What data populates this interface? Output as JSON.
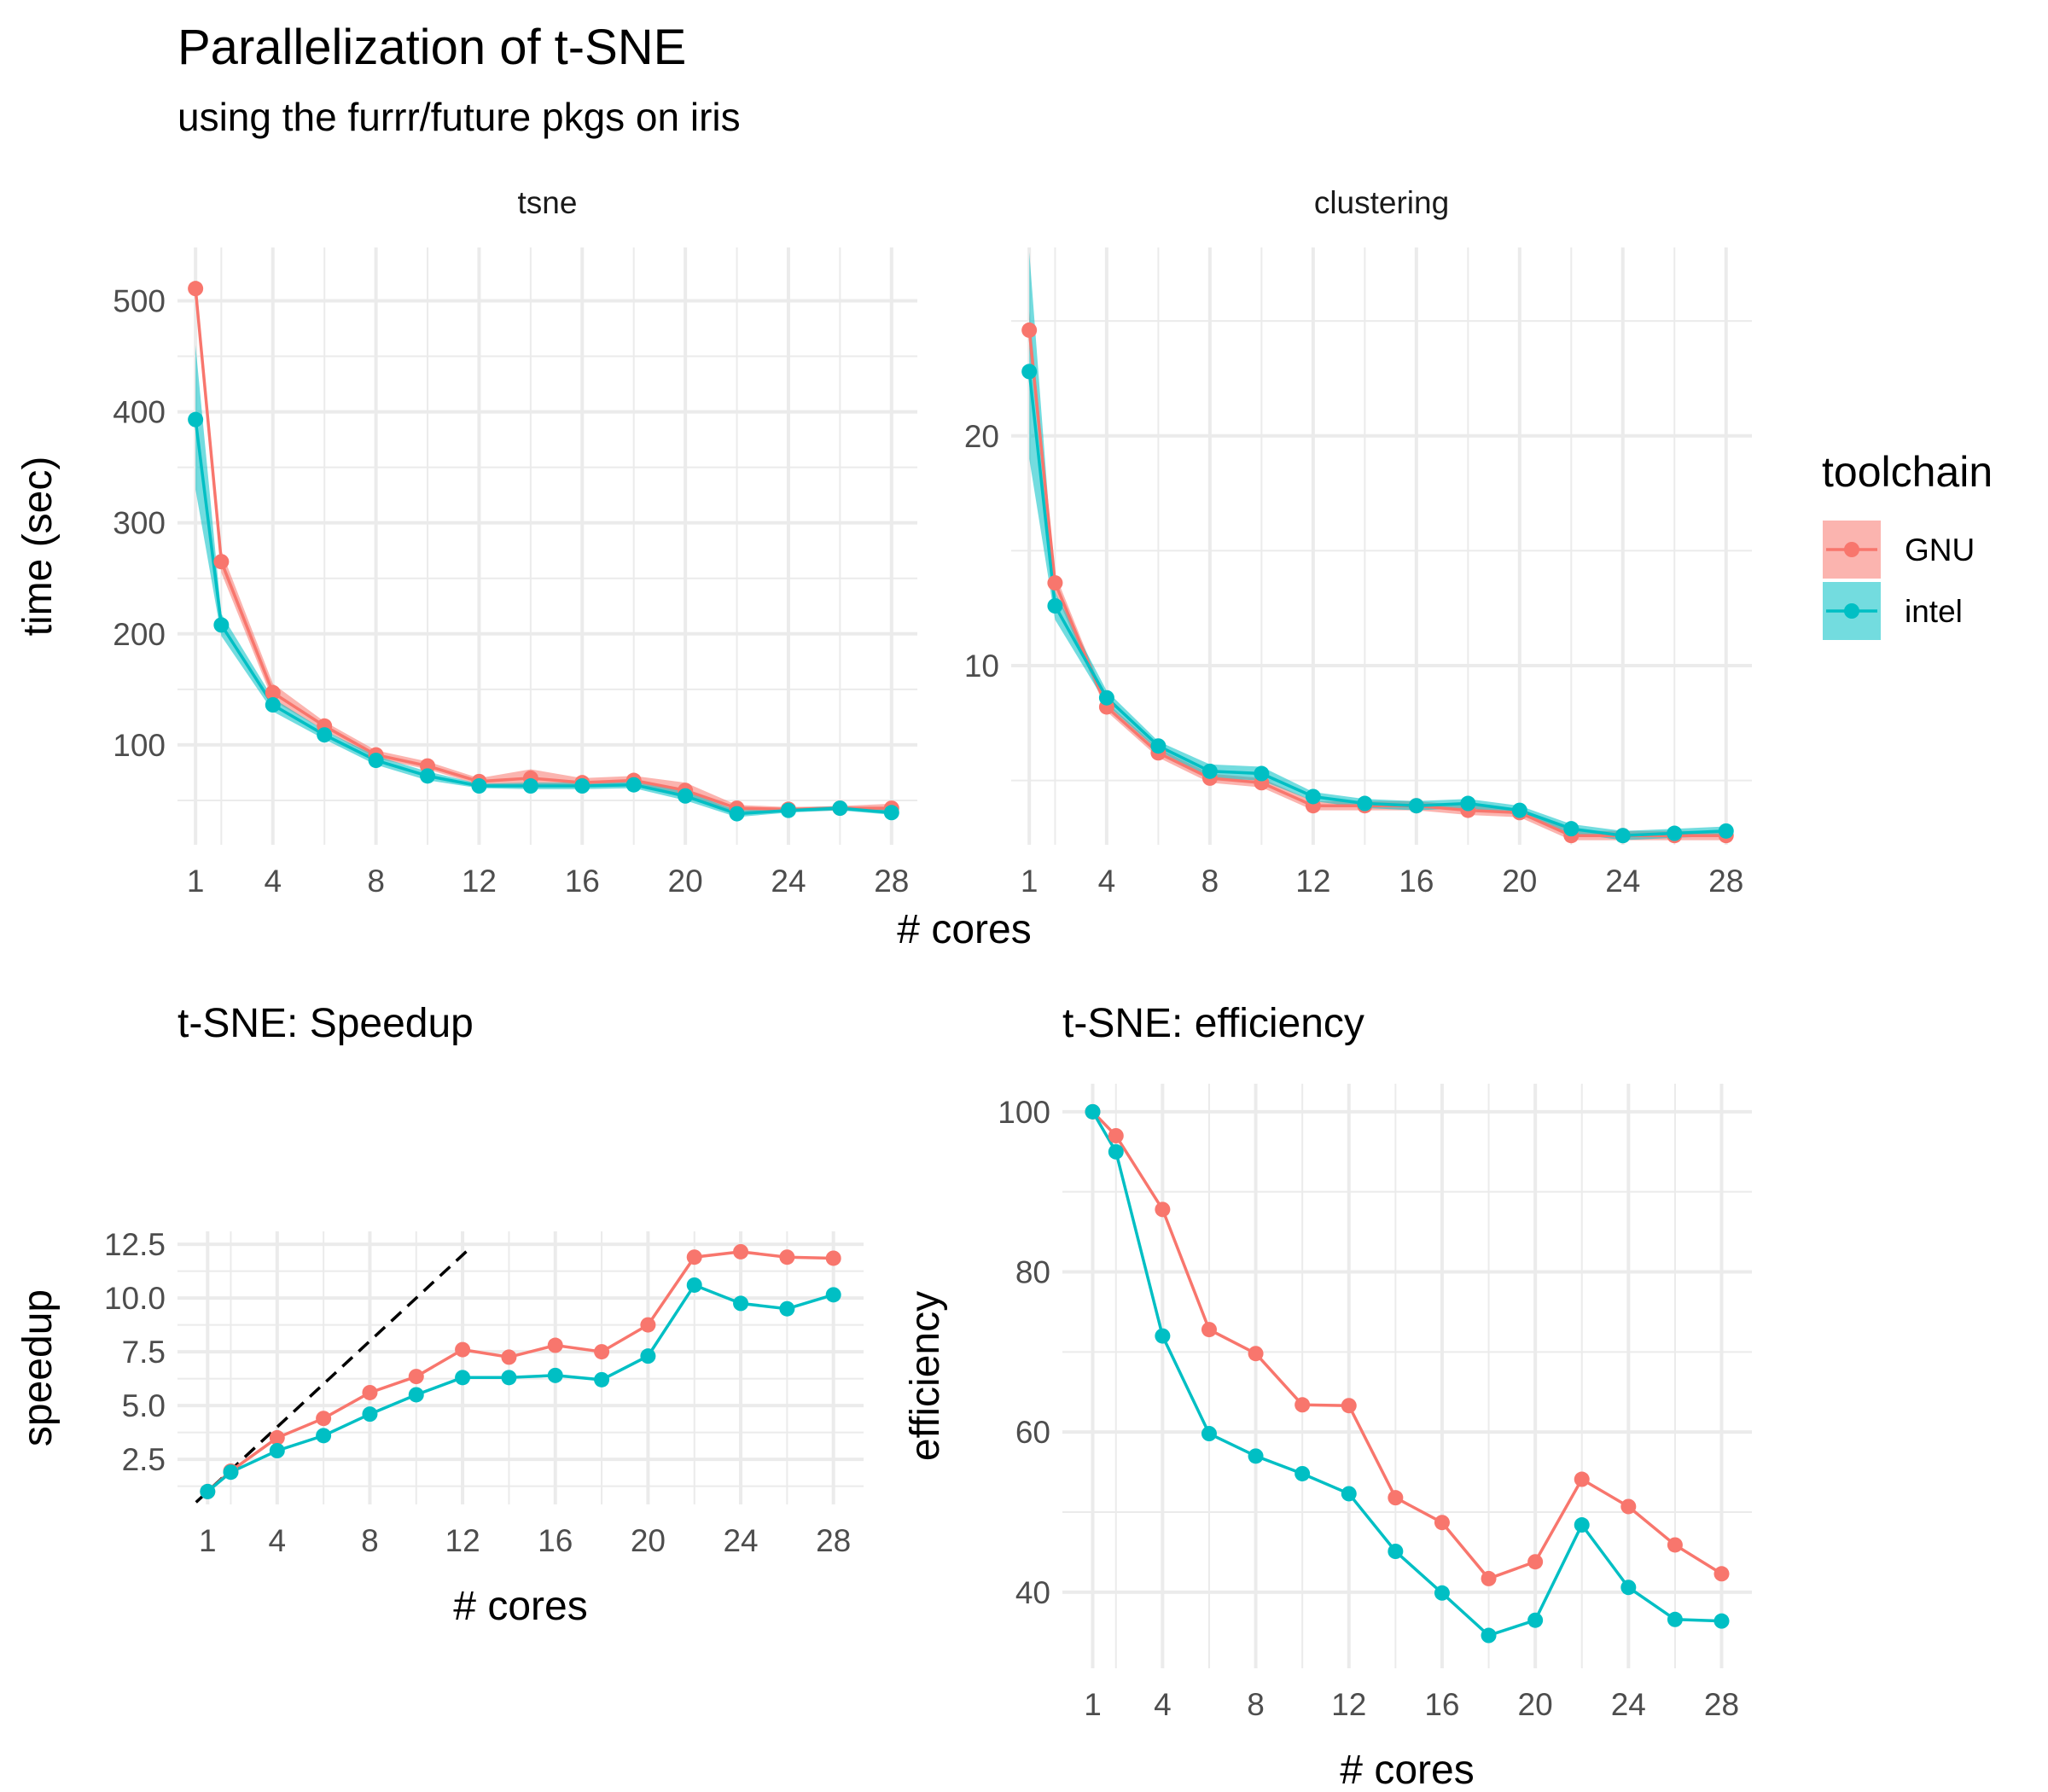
{
  "title": "Parallelization of t-SNE",
  "subtitle": "using the furrr/future pkgs on iris",
  "shared_xlabel": "# cores",
  "legend": {
    "title": "toolchain",
    "items": [
      {
        "label": "GNU",
        "color": "#F8766D"
      },
      {
        "label": "intel",
        "color": "#00BFC4"
      }
    ]
  },
  "chart_data": [
    {
      "id": "tsne",
      "type": "line",
      "strip": "tsne",
      "ylabel": "time (sec)",
      "xlabel": "",
      "xticks": [
        1,
        4,
        8,
        12,
        16,
        20,
        24,
        28
      ],
      "yticks": [
        100,
        200,
        300,
        400,
        500
      ],
      "xlim": [
        0.3,
        29
      ],
      "ylim": [
        10,
        548
      ],
      "x": [
        1,
        2,
        4,
        6,
        8,
        10,
        12,
        14,
        16,
        18,
        20,
        22,
        24,
        26,
        28
      ],
      "series": [
        {
          "name": "GNU",
          "color": "#F8766D",
          "values": [
            511,
            265,
            147,
            117,
            91,
            81,
            67,
            70,
            66,
            68,
            59,
            43,
            42,
            43,
            43
          ],
          "band_lo": [
            505,
            255,
            140,
            113,
            88,
            78,
            64,
            64,
            62,
            64,
            52,
            40,
            40,
            41,
            40
          ],
          "band_hi": [
            517,
            275,
            155,
            121,
            95,
            85,
            70,
            78,
            70,
            72,
            66,
            46,
            44,
            45,
            47
          ]
        },
        {
          "name": "intel",
          "color": "#00BFC4",
          "values": [
            393,
            208,
            136,
            109,
            86,
            72,
            63,
            63,
            63,
            64,
            54,
            38,
            41,
            43,
            39
          ],
          "band_lo": [
            330,
            198,
            130,
            105,
            82,
            68,
            61,
            60,
            60,
            61,
            50,
            35,
            39,
            41,
            37
          ],
          "band_hi": [
            460,
            218,
            142,
            113,
            90,
            76,
            65,
            66,
            66,
            67,
            58,
            41,
            43,
            45,
            42
          ]
        }
      ]
    },
    {
      "id": "clustering",
      "type": "line",
      "strip": "clustering",
      "ylabel": "",
      "xlabel": "",
      "xticks": [
        1,
        4,
        8,
        12,
        16,
        20,
        24,
        28
      ],
      "yticks": [
        10,
        20
      ],
      "xlim": [
        0.3,
        29
      ],
      "ylim": [
        2.2,
        28.2
      ],
      "x": [
        1,
        2,
        4,
        6,
        8,
        10,
        12,
        14,
        16,
        18,
        20,
        22,
        24,
        26,
        28
      ],
      "series": [
        {
          "name": "GNU",
          "color": "#F8766D",
          "values": [
            24.6,
            13.6,
            8.2,
            6.2,
            5.1,
            4.9,
            3.9,
            3.9,
            3.9,
            3.7,
            3.6,
            2.6,
            2.6,
            2.6,
            2.6
          ],
          "band_lo": [
            23.8,
            13.2,
            8.0,
            6.0,
            4.9,
            4.7,
            3.7,
            3.7,
            3.7,
            3.5,
            3.4,
            2.4,
            2.4,
            2.4,
            2.4
          ],
          "band_hi": [
            25.4,
            14.0,
            8.4,
            6.4,
            5.3,
            5.1,
            4.1,
            4.1,
            4.1,
            3.9,
            3.8,
            2.8,
            2.8,
            2.8,
            2.8
          ]
        },
        {
          "name": "intel",
          "color": "#00BFC4",
          "values": [
            22.8,
            12.6,
            8.6,
            6.5,
            5.4,
            5.3,
            4.3,
            4.0,
            3.9,
            4.0,
            3.7,
            2.9,
            2.6,
            2.7,
            2.8
          ],
          "band_lo": [
            19.0,
            12.0,
            8.3,
            6.3,
            5.1,
            5.0,
            4.1,
            3.8,
            3.7,
            3.8,
            3.5,
            2.7,
            2.4,
            2.5,
            2.6
          ],
          "band_hi": [
            28.0,
            13.2,
            8.9,
            6.7,
            5.7,
            5.6,
            4.5,
            4.2,
            4.1,
            4.2,
            3.9,
            3.1,
            2.8,
            2.9,
            3.0
          ]
        }
      ]
    },
    {
      "id": "speedup",
      "type": "line",
      "title": "t-SNE: Speedup",
      "ylabel": "speedup",
      "xlabel": "# cores",
      "xticks": [
        1,
        4,
        8,
        12,
        16,
        20,
        24,
        28
      ],
      "yticks": [
        2.5,
        5.0,
        7.5,
        10.0,
        12.5
      ],
      "ytick_labels": [
        "2.5",
        "5.0",
        "7.5",
        "10.0",
        "12.5"
      ],
      "xlim": [
        -0.3,
        29.3
      ],
      "ylim": [
        0.4,
        13.1
      ],
      "x": [
        1,
        2,
        4,
        6,
        8,
        10,
        12,
        14,
        16,
        18,
        20,
        22,
        24,
        26,
        28
      ],
      "reference_line": {
        "type": "y=x",
        "from": 0.5,
        "to": 12.3
      },
      "series": [
        {
          "name": "GNU",
          "color": "#F8766D",
          "values": [
            1.0,
            1.95,
            3.5,
            4.4,
            5.6,
            6.35,
            7.6,
            7.25,
            7.8,
            7.5,
            8.75,
            11.9,
            12.15,
            11.9,
            11.85
          ]
        },
        {
          "name": "intel",
          "color": "#00BFC4",
          "values": [
            1.0,
            1.9,
            2.9,
            3.6,
            4.6,
            5.5,
            6.3,
            6.3,
            6.4,
            6.2,
            7.3,
            10.6,
            9.75,
            9.5,
            10.15
          ]
        }
      ]
    },
    {
      "id": "efficiency",
      "type": "line",
      "title": "t-SNE: efficiency",
      "ylabel": "efficiency",
      "xlabel": "# cores",
      "xticks": [
        1,
        4,
        8,
        12,
        16,
        20,
        24,
        28
      ],
      "yticks": [
        40,
        60,
        80,
        100
      ],
      "xlim": [
        -0.3,
        29.3
      ],
      "ylim": [
        30.5,
        103.5
      ],
      "x": [
        1,
        2,
        4,
        6,
        8,
        10,
        12,
        14,
        16,
        18,
        20,
        22,
        24,
        26,
        28
      ],
      "series": [
        {
          "name": "GNU",
          "color": "#F8766D",
          "values": [
            100,
            97,
            87.8,
            72.8,
            69.8,
            63.4,
            63.3,
            51.8,
            48.7,
            41.7,
            43.8,
            54.1,
            50.7,
            45.9,
            42.3
          ]
        },
        {
          "name": "intel",
          "color": "#00BFC4",
          "values": [
            100,
            95,
            72,
            59.8,
            57,
            54.8,
            52.3,
            45.1,
            39.9,
            34.6,
            36.5,
            48.4,
            40.6,
            36.6,
            36.4
          ]
        }
      ]
    }
  ]
}
